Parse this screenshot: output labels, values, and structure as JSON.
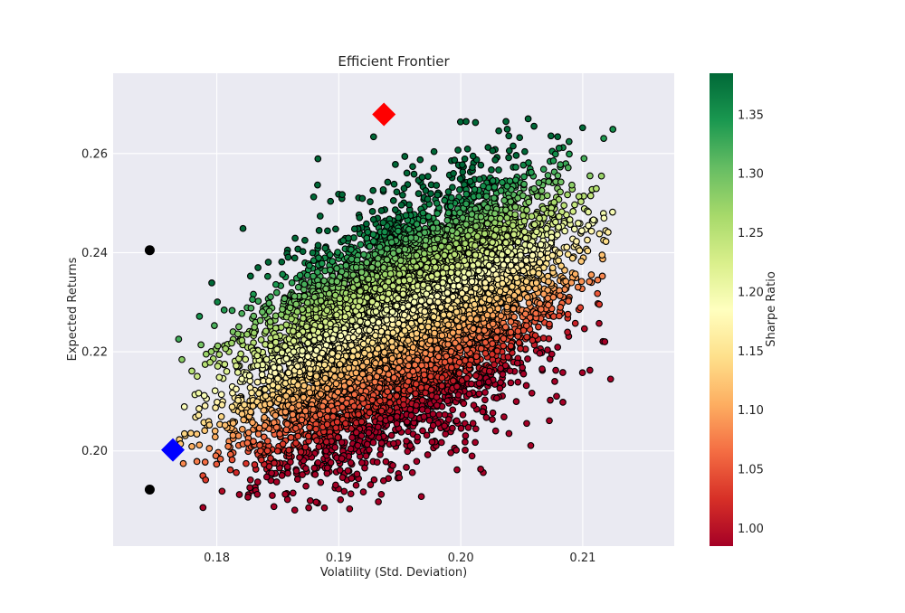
{
  "chart_data": {
    "type": "scatter",
    "title": "Efficient Frontier",
    "xlabel": "Volatility (Std. Deviation)",
    "ylabel": "Expected Returns",
    "xlim": [
      0.1715,
      0.2175
    ],
    "ylim": [
      0.1808,
      0.2762
    ],
    "x_ticks": [
      0.18,
      0.19,
      0.2,
      0.21
    ],
    "x_tick_labels": [
      "0.18",
      "0.19",
      "0.20",
      "0.21"
    ],
    "y_ticks": [
      0.2,
      0.22,
      0.24,
      0.26
    ],
    "y_tick_labels": [
      "0.20",
      "0.22",
      "0.24",
      "0.26"
    ],
    "grid": true,
    "colormap": "RdYlGn",
    "colorbar": {
      "label": "Sharpe Ratio",
      "range": [
        0.985,
        1.385
      ],
      "ticks": [
        1.0,
        1.05,
        1.1,
        1.15,
        1.2,
        1.25,
        1.3,
        1.35
      ],
      "tick_labels": [
        "1.00",
        "1.05",
        "1.10",
        "1.15",
        "1.20",
        "1.25",
        "1.30",
        "1.35"
      ]
    },
    "portfolio_cloud": {
      "count": 9000,
      "volatility_range": [
        0.1765,
        0.2125
      ],
      "return_range": [
        0.188,
        0.268
      ],
      "sharpe_range": [
        0.985,
        1.385
      ],
      "center": [
        0.1955,
        0.226
      ]
    },
    "highlight_points": [
      {
        "name": "max-sharpe",
        "x": 0.1937,
        "y": 0.2679,
        "marker": "diamond",
        "color": "#ff0000"
      },
      {
        "name": "min-volatility",
        "x": 0.1764,
        "y": 0.2002,
        "marker": "diamond",
        "color": "#0000ff"
      },
      {
        "name": "black-point-upper",
        "x": 0.1745,
        "y": 0.2405,
        "marker": "circle",
        "color": "#000000"
      },
      {
        "name": "black-point-lower",
        "x": 0.1745,
        "y": 0.1922,
        "marker": "circle",
        "color": "#000000"
      }
    ],
    "colors": {
      "plot_background": "#eaeaf2",
      "grid": "#ffffff",
      "marker_edge": "#000000"
    }
  }
}
